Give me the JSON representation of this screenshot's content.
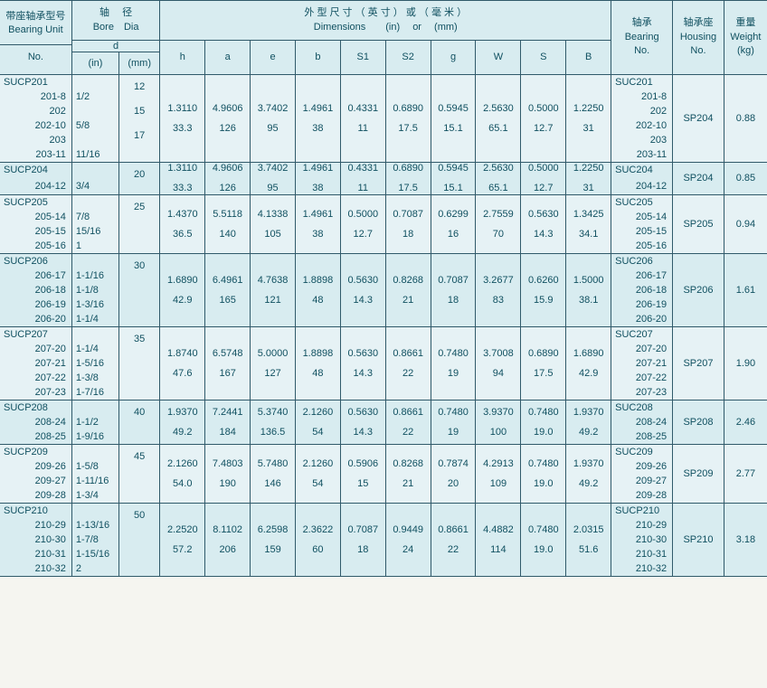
{
  "header": {
    "unit_title_cn": "带座轴承型号",
    "unit_title_en_1": "Bearing  Unit",
    "unit_title_en_2": "No.",
    "bore_cn": "轴　 径",
    "bore_en": "Bore　Dia",
    "bore_d": "d",
    "bore_in": "(in)",
    "bore_mm": "(mm)",
    "dims_cn": "外 型 尺 寸 （ 英 寸 ） 或 （ 毫 米 ）",
    "dims_en": "Dimensions　　(in)　 or　 (mm)",
    "bearing_cn": "轴承",
    "bearing_en_1": "Bearing",
    "bearing_en_2": "No.",
    "housing_cn": "轴承座",
    "housing_en_1": "Housing",
    "housing_en_2": "No.",
    "weight_cn": "重量",
    "weight_en_1": "Weight",
    "weight_en_2": "(kg)",
    "cols": [
      "h",
      "a",
      "e",
      "b",
      "S1",
      "S2",
      "g",
      "W",
      "S",
      "B"
    ]
  },
  "rows": [
    {
      "unit": [
        "SUCP201",
        "201-8",
        "202",
        "202-10",
        "203",
        "203-11"
      ],
      "in": [
        "",
        "1/2",
        "",
        "5/8",
        "",
        "11/16"
      ],
      "mm": [
        "12",
        "",
        "15",
        "",
        "17",
        ""
      ],
      "dim_in": [
        "1.3110",
        "4.9606",
        "3.7402",
        "1.4961",
        "0.4331",
        "0.6890",
        "0.5945",
        "2.5630",
        "0.5000",
        "1.2250"
      ],
      "dim_mm": [
        "33.3",
        "126",
        "95",
        "38",
        "11",
        "17.5",
        "15.1",
        "65.1",
        "12.7",
        "31"
      ],
      "bearing": [
        "SUC201",
        "201-8",
        "202",
        "202-10",
        "203",
        "203-11"
      ],
      "housing": "SP204",
      "weight": "0.88"
    },
    {
      "unit": [
        "SUCP204",
        "204-12"
      ],
      "in": [
        "",
        "3/4"
      ],
      "mm": [
        "20",
        ""
      ],
      "dim_in": [
        "1.3110",
        "4.9606",
        "3.7402",
        "1.4961",
        "0.4331",
        "0.6890",
        "0.5945",
        "2.5630",
        "0.5000",
        "1.2250"
      ],
      "dim_mm": [
        "33.3",
        "126",
        "95",
        "38",
        "11",
        "17.5",
        "15.1",
        "65.1",
        "12.7",
        "31"
      ],
      "bearing": [
        "SUC204",
        "204-12"
      ],
      "housing": "SP204",
      "weight": "0.85"
    },
    {
      "unit": [
        "SUCP205",
        "205-14",
        "205-15",
        "205-16"
      ],
      "in": [
        "",
        "7/8",
        "15/16",
        "1"
      ],
      "mm": [
        "25",
        "",
        "",
        ""
      ],
      "dim_in": [
        "1.4370",
        "5.5118",
        "4.1338",
        "1.4961",
        "0.5000",
        "0.7087",
        "0.6299",
        "2.7559",
        "0.5630",
        "1.3425"
      ],
      "dim_mm": [
        "36.5",
        "140",
        "105",
        "38",
        "12.7",
        "18",
        "16",
        "70",
        "14.3",
        "34.1"
      ],
      "bearing": [
        "SUC205",
        "205-14",
        "205-15",
        "205-16"
      ],
      "housing": "SP205",
      "weight": "0.94"
    },
    {
      "unit": [
        "SUCP206",
        "206-17",
        "206-18",
        "206-19",
        "206-20"
      ],
      "in": [
        "",
        "1-1/16",
        "1-1/8",
        "1-3/16",
        "1-1/4"
      ],
      "mm": [
        "30",
        "",
        "",
        "",
        ""
      ],
      "dim_in": [
        "1.6890",
        "6.4961",
        "4.7638",
        "1.8898",
        "0.5630",
        "0.8268",
        "0.7087",
        "3.2677",
        "0.6260",
        "1.5000"
      ],
      "dim_mm": [
        "42.9",
        "165",
        "121",
        "48",
        "14.3",
        "21",
        "18",
        "83",
        "15.9",
        "38.1"
      ],
      "bearing": [
        "SUC206",
        "206-17",
        "206-18",
        "206-19",
        "206-20"
      ],
      "housing": "SP206",
      "weight": "1.61"
    },
    {
      "unit": [
        "SUCP207",
        "207-20",
        "207-21",
        "207-22",
        "207-23"
      ],
      "in": [
        "",
        "1-1/4",
        "1-5/16",
        "1-3/8",
        "1-7/16"
      ],
      "mm": [
        "35",
        "",
        "",
        "",
        ""
      ],
      "dim_in": [
        "1.8740",
        "6.5748",
        "5.0000",
        "1.8898",
        "0.5630",
        "0.8661",
        "0.7480",
        "3.7008",
        "0.6890",
        "1.6890"
      ],
      "dim_mm": [
        "47.6",
        "167",
        "127",
        "48",
        "14.3",
        "22",
        "19",
        "94",
        "17.5",
        "42.9"
      ],
      "bearing": [
        "SUC207",
        "207-20",
        "207-21",
        "207-22",
        "207-23"
      ],
      "housing": "SP207",
      "weight": "1.90"
    },
    {
      "unit": [
        "SUCP208",
        "208-24",
        "208-25"
      ],
      "in": [
        "",
        "1-1/2",
        "1-9/16"
      ],
      "mm": [
        "40",
        "",
        ""
      ],
      "dim_in": [
        "1.9370",
        "7.2441",
        "5.3740",
        "2.1260",
        "0.5630",
        "0.8661",
        "0.7480",
        "3.9370",
        "0.7480",
        "1.9370"
      ],
      "dim_mm": [
        "49.2",
        "184",
        "136.5",
        "54",
        "14.3",
        "22",
        "19",
        "100",
        "19.0",
        "49.2"
      ],
      "bearing": [
        "SUC208",
        "208-24",
        "208-25"
      ],
      "housing": "SP208",
      "weight": "2.46"
    },
    {
      "unit": [
        "SUCP209",
        "209-26",
        "209-27",
        "209-28"
      ],
      "in": [
        "",
        "1-5/8",
        "1-11/16",
        "1-3/4"
      ],
      "mm": [
        "45",
        "",
        "",
        ""
      ],
      "dim_in": [
        "2.1260",
        "7.4803",
        "5.7480",
        "2.1260",
        "0.5906",
        "0.8268",
        "0.7874",
        "4.2913",
        "0.7480",
        "1.9370"
      ],
      "dim_mm": [
        "54.0",
        "190",
        "146",
        "54",
        "15",
        "21",
        "20",
        "109",
        "19.0",
        "49.2"
      ],
      "bearing": [
        "SUC209",
        "209-26",
        "209-27",
        "209-28"
      ],
      "housing": "SP209",
      "weight": "2.77"
    },
    {
      "unit": [
        "SUCP210",
        "210-29",
        "210-30",
        "210-31",
        "210-32"
      ],
      "in": [
        "",
        "1-13/16",
        "1-7/8",
        "1-15/16",
        "2"
      ],
      "mm": [
        "50",
        "",
        "",
        "",
        ""
      ],
      "dim_in": [
        "2.2520",
        "8.1102",
        "6.2598",
        "2.3622",
        "0.7087",
        "0.9449",
        "0.8661",
        "4.4882",
        "0.7480",
        "2.0315"
      ],
      "dim_mm": [
        "57.2",
        "206",
        "159",
        "60",
        "18",
        "24",
        "22",
        "114",
        "19.0",
        "51.6"
      ],
      "bearing": [
        "SUCP210",
        "210-29",
        "210-30",
        "210-31",
        "210-32"
      ],
      "housing": "SP210",
      "weight": "3.18"
    }
  ]
}
